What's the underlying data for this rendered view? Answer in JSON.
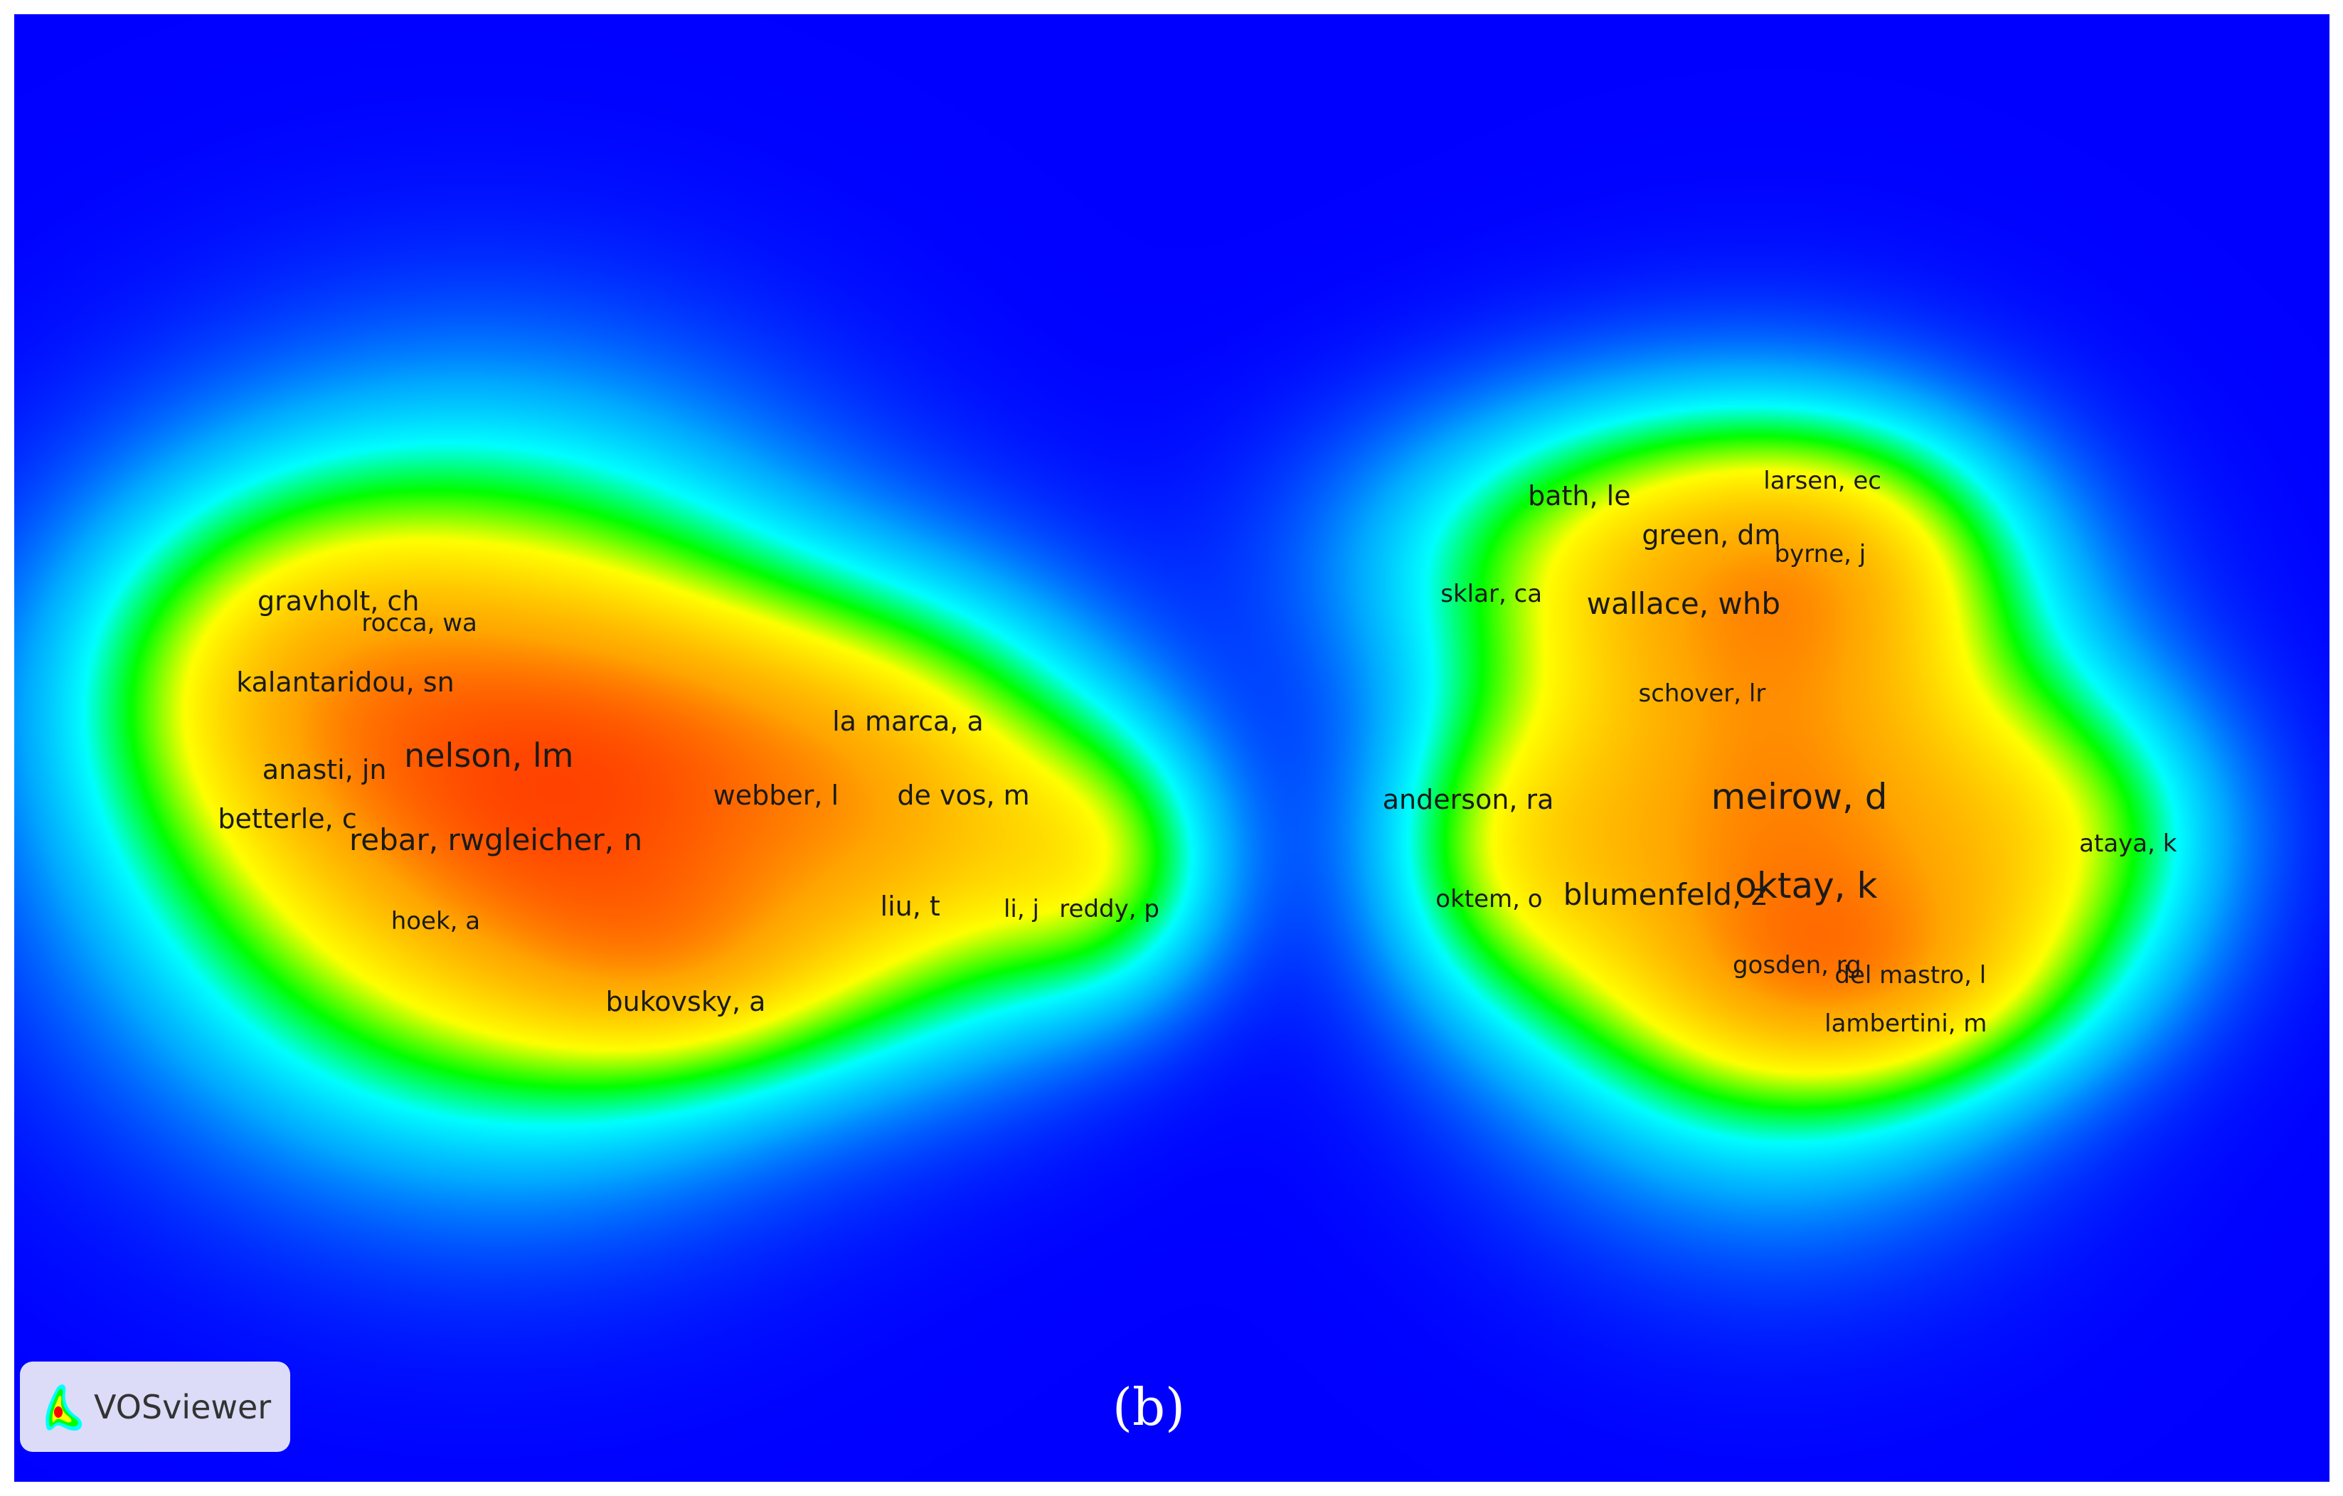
{
  "chart_data": {
    "type": "heatmap",
    "title": "",
    "caption": "(b)",
    "colorscale": [
      "#0000ff",
      "#00ffff",
      "#00ff00",
      "#ffff00",
      "#ffa500",
      "#ff0000"
    ],
    "nodes": [
      {
        "label": "gravholt, ch",
        "x": 0.14,
        "y": 0.4,
        "weight": 2
      },
      {
        "label": "rocca, wa",
        "x": 0.175,
        "y": 0.415,
        "weight": 1
      },
      {
        "label": "kalantaridou, sn",
        "x": 0.143,
        "y": 0.455,
        "weight": 2
      },
      {
        "label": "anasti, jn",
        "x": 0.134,
        "y": 0.515,
        "weight": 2
      },
      {
        "label": "nelson, lm",
        "x": 0.205,
        "y": 0.505,
        "weight": 4
      },
      {
        "label": "betterle, c",
        "x": 0.118,
        "y": 0.548,
        "weight": 2
      },
      {
        "label": "rebar, rwgleicher, n",
        "x": 0.208,
        "y": 0.563,
        "weight": 3
      },
      {
        "label": "hoek, a",
        "x": 0.182,
        "y": 0.618,
        "weight": 1
      },
      {
        "label": "la marca, a",
        "x": 0.386,
        "y": 0.482,
        "weight": 2
      },
      {
        "label": "webber, l",
        "x": 0.329,
        "y": 0.532,
        "weight": 2
      },
      {
        "label": "de vos, m",
        "x": 0.41,
        "y": 0.532,
        "weight": 2
      },
      {
        "label": "liu, t",
        "x": 0.387,
        "y": 0.608,
        "weight": 2
      },
      {
        "label": "li, j",
        "x": 0.435,
        "y": 0.61,
        "weight": 1
      },
      {
        "label": "reddy, p",
        "x": 0.473,
        "y": 0.61,
        "weight": 1
      },
      {
        "label": "bukovsky, a",
        "x": 0.29,
        "y": 0.673,
        "weight": 2
      },
      {
        "label": "bath, le",
        "x": 0.676,
        "y": 0.328,
        "weight": 2
      },
      {
        "label": "larsen, ec",
        "x": 0.781,
        "y": 0.318,
        "weight": 1
      },
      {
        "label": "green, dm",
        "x": 0.733,
        "y": 0.355,
        "weight": 2
      },
      {
        "label": "byrne, j",
        "x": 0.78,
        "y": 0.368,
        "weight": 1
      },
      {
        "label": "sklar, ca",
        "x": 0.638,
        "y": 0.395,
        "weight": 1
      },
      {
        "label": "wallace, whb",
        "x": 0.721,
        "y": 0.402,
        "weight": 3
      },
      {
        "label": "schover, lr",
        "x": 0.729,
        "y": 0.463,
        "weight": 1
      },
      {
        "label": "anderson, ra",
        "x": 0.628,
        "y": 0.535,
        "weight": 2
      },
      {
        "label": "meirow, d",
        "x": 0.771,
        "y": 0.533,
        "weight": 5
      },
      {
        "label": "ataya, k",
        "x": 0.913,
        "y": 0.565,
        "weight": 1
      },
      {
        "label": "oktem, o",
        "x": 0.637,
        "y": 0.603,
        "weight": 1
      },
      {
        "label": "blumenfeld, z",
        "x": 0.713,
        "y": 0.6,
        "weight": 3
      },
      {
        "label": "oktay, k",
        "x": 0.774,
        "y": 0.594,
        "weight": 5
      },
      {
        "label": "gosden, rg",
        "x": 0.77,
        "y": 0.648,
        "weight": 1
      },
      {
        "label": "del mastro, l",
        "x": 0.819,
        "y": 0.655,
        "weight": 1
      },
      {
        "label": "lambertini, m",
        "x": 0.817,
        "y": 0.688,
        "weight": 1
      }
    ]
  },
  "logo": {
    "name": "VOSviewer",
    "colors": [
      "#ff0000",
      "#ffff00",
      "#00ff00",
      "#00ffff",
      "#0000ff"
    ]
  }
}
